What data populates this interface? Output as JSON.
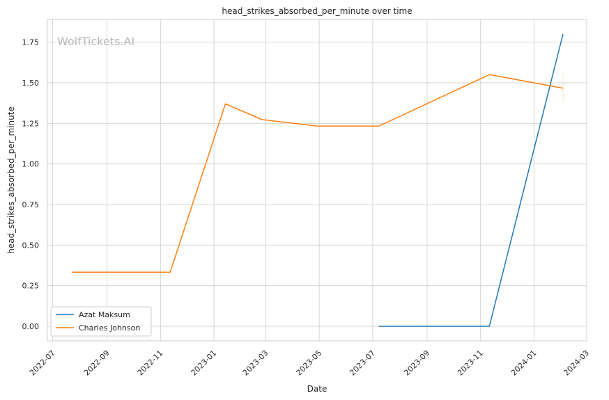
{
  "chart_data": {
    "type": "line",
    "title": "head_strikes_absorbed_per_minute over time",
    "xlabel": "Date",
    "ylabel": "head_strikes_absorbed_per_minute",
    "watermark": "WolfTickets.AI",
    "x_ticks": [
      "2022-07",
      "2022-09",
      "2022-11",
      "2023-01",
      "2023-03",
      "2023-05",
      "2023-07",
      "2023-09",
      "2023-11",
      "2024-01",
      "2024-03"
    ],
    "y_ticks": [
      "0.00",
      "0.25",
      "0.50",
      "0.75",
      "1.00",
      "1.25",
      "1.50",
      "1.75"
    ],
    "xlim": [
      "2022-06-25",
      "2024-03-01"
    ],
    "ylim": [
      -0.09,
      1.89
    ],
    "grid": true,
    "legend_position": "lower-left",
    "series": [
      {
        "name": "Azat Maksum",
        "color": "#1f77b4",
        "x": [
          "2023-07-08",
          "2023-11-11",
          "2024-02-03"
        ],
        "y": [
          0.0,
          0.0,
          1.8
        ]
      },
      {
        "name": "Charles Johnson",
        "color": "#ff7f0e",
        "x": [
          "2022-07-23",
          "2022-11-12",
          "2023-01-14",
          "2023-02-25",
          "2023-04-29",
          "2023-07-08",
          "2023-11-11",
          "2024-02-03"
        ],
        "y": [
          0.333,
          0.333,
          1.37,
          1.273,
          1.233,
          1.233,
          1.55,
          1.467
        ]
      }
    ]
  }
}
